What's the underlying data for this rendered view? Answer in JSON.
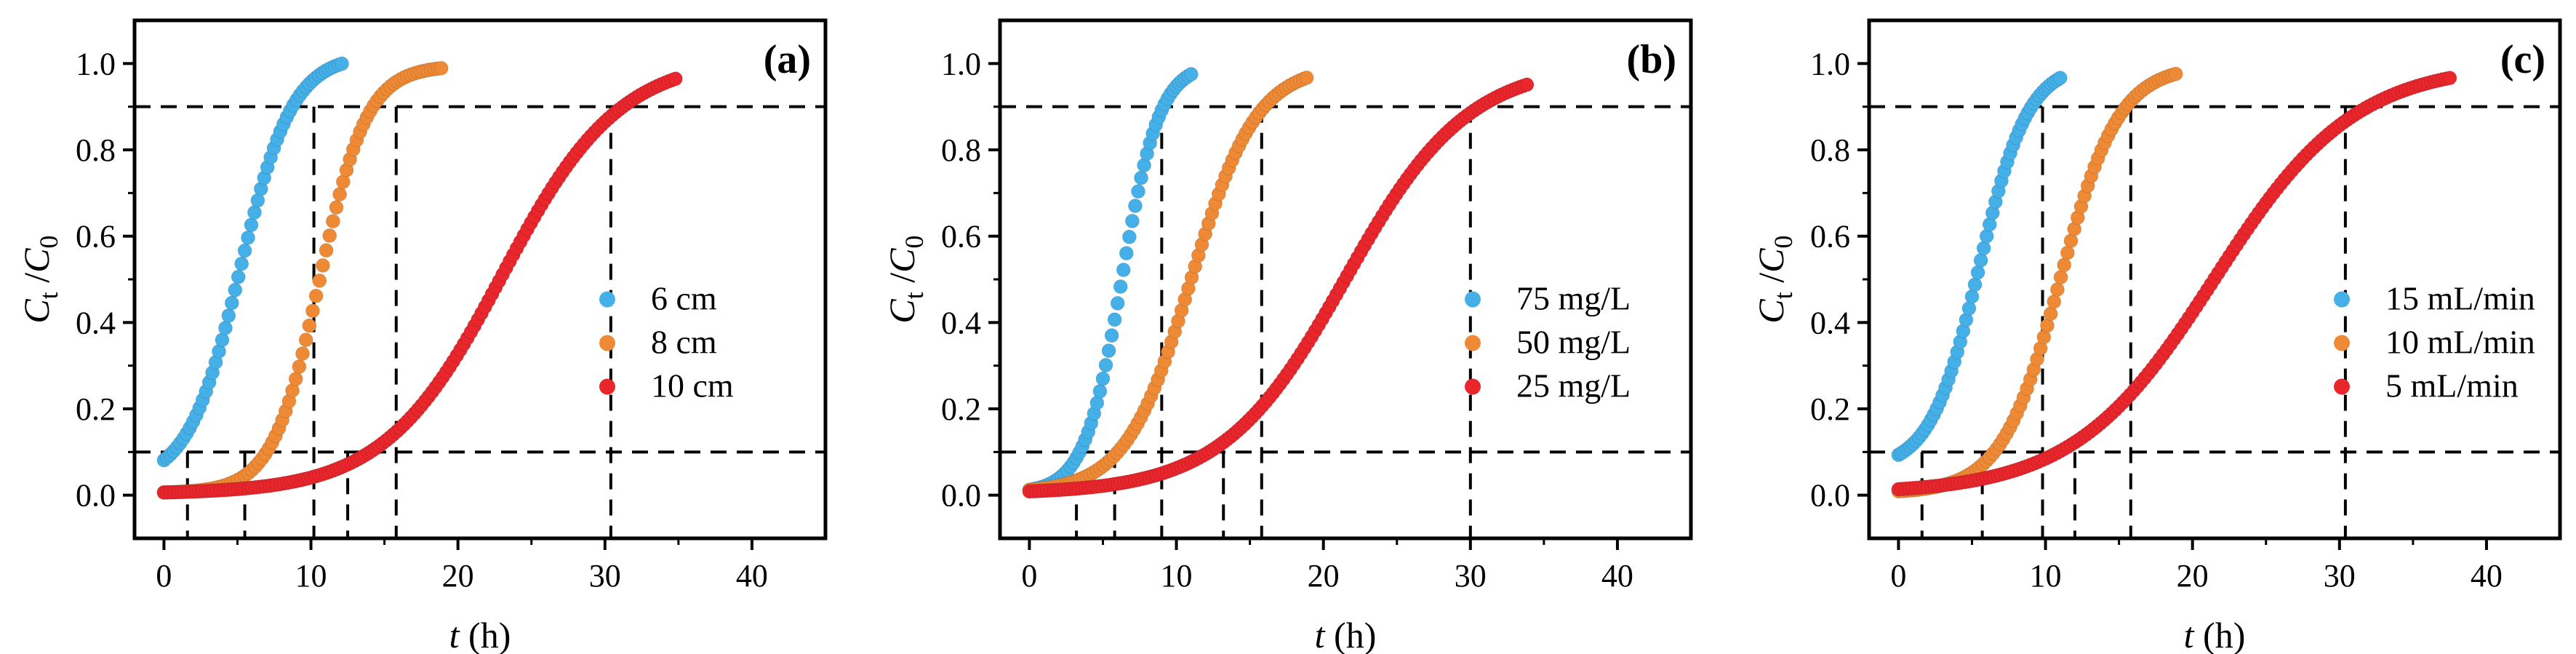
{
  "figure": {
    "series_colors": [
      "#45b0e8",
      "#ee8a35",
      "#e8262c"
    ],
    "ref_lines_y": [
      0.1,
      0.9
    ]
  },
  "chart_data": [
    {
      "type": "scatter",
      "panel_label": "(a)",
      "xlabel": {
        "var": "t",
        "unit": " (h)"
      },
      "ylabel": {
        "var": "C",
        "sub_t": "t",
        "slash": " /",
        "var2": "C",
        "sub_0": "0"
      },
      "xlim": [
        -2,
        45
      ],
      "ylim": [
        -0.1,
        1.1
      ],
      "xticks": [
        0,
        10,
        20,
        30,
        40
      ],
      "xtick_labels": [
        "0",
        "10",
        "20",
        "30",
        "40"
      ],
      "yticks": [
        0.0,
        0.2,
        0.4,
        0.6,
        0.8,
        1.0
      ],
      "ytick_labels": [
        "0.0",
        "0.2",
        "0.4",
        "0.6",
        "0.8",
        "1.0"
      ],
      "legend_position": "center-right",
      "series": [
        {
          "name": "6 cm",
          "color": "#45b0e8",
          "t_start": 0.0,
          "t_end": 12.3,
          "t_mid": 5.2,
          "k": 0.56,
          "c0": 0.03,
          "c_end": 1.02,
          "step": 0.22,
          "breakthrough_t": 1.6,
          "exhaustion_t": 10.2
        },
        {
          "name": "8 cm",
          "color": "#ee8a35",
          "t_start": 0.0,
          "t_end": 19.0,
          "t_mid": 10.6,
          "k": 0.62,
          "c0": 0.005,
          "c_end": 0.995,
          "step": 0.23,
          "breakthrough_t": 5.5,
          "exhaustion_t": 15.8
        },
        {
          "name": "10 cm",
          "color": "#e8262c",
          "t_start": 0.0,
          "t_end": 35.0,
          "t_mid": 23.0,
          "k": 0.25,
          "c0": 0.003,
          "c_end": 1.015,
          "step": 0.24,
          "breakthrough_t": 12.5,
          "exhaustion_t": 30.4
        }
      ]
    },
    {
      "type": "scatter",
      "panel_label": "(b)",
      "xlabel": {
        "var": "t",
        "unit": " (h)"
      },
      "ylabel": {
        "var": "C",
        "sub_t": "t",
        "slash": " /",
        "var2": "C",
        "sub_0": "0"
      },
      "xlim": [
        -2,
        45
      ],
      "ylim": [
        -0.1,
        1.1
      ],
      "xticks": [
        0,
        10,
        20,
        30,
        40
      ],
      "xtick_labels": [
        "0",
        "10",
        "20",
        "30",
        "40"
      ],
      "yticks": [
        0.0,
        0.2,
        0.4,
        0.6,
        0.8,
        1.0
      ],
      "ytick_labels": [
        "0.0",
        "0.2",
        "0.4",
        "0.6",
        "0.8",
        "1.0"
      ],
      "legend_position": "center-right",
      "series": [
        {
          "name": "75 mg/L",
          "color": "#45b0e8",
          "t_start": 0.0,
          "t_end": 11.0,
          "t_mid": 6.3,
          "k": 0.78,
          "c0": 0.005,
          "c_end": 1.0,
          "step": 0.2,
          "breakthrough_t": 3.2,
          "exhaustion_t": 9.0
        },
        {
          "name": "50 mg/L",
          "color": "#ee8a35",
          "t_start": 0.0,
          "t_end": 19.0,
          "t_mid": 11.0,
          "k": 0.45,
          "c0": 0.005,
          "c_end": 0.995,
          "step": 0.23,
          "breakthrough_t": 5.8,
          "exhaustion_t": 15.8
        },
        {
          "name": "25 mg/L",
          "color": "#e8262c",
          "t_start": 0.0,
          "t_end": 34.0,
          "t_mid": 21.5,
          "k": 0.24,
          "c0": 0.003,
          "c_end": 1.0,
          "step": 0.24,
          "breakthrough_t": 13.2,
          "exhaustion_t": 30.0
        }
      ]
    },
    {
      "type": "scatter",
      "panel_label": "(c)",
      "xlabel": {
        "var": "t",
        "unit": " (h)"
      },
      "ylabel": {
        "var": "C",
        "sub_t": "t",
        "slash": " /",
        "var2": "C",
        "sub_0": "0"
      },
      "xlim": [
        -2,
        45
      ],
      "ylim": [
        -0.1,
        1.1
      ],
      "xticks": [
        0,
        10,
        20,
        30,
        40
      ],
      "xtick_labels": [
        "0",
        "10",
        "20",
        "30",
        "40"
      ],
      "yticks": [
        0.0,
        0.2,
        0.4,
        0.6,
        0.8,
        1.0
      ],
      "ytick_labels": [
        "0.0",
        "0.2",
        "0.4",
        "0.6",
        "0.8",
        "1.0"
      ],
      "legend_position": "center-right",
      "series": [
        {
          "name": "15 mL/min",
          "color": "#45b0e8",
          "t_start": 0.0,
          "t_end": 11.0,
          "t_mid": 5.5,
          "k": 0.6,
          "c0": 0.06,
          "c_end": 1.0,
          "step": 0.2,
          "breakthrough_t": 1.6,
          "exhaustion_t": 9.8
        },
        {
          "name": "10 mL/min",
          "color": "#ee8a35",
          "t_start": 0.0,
          "t_end": 19.0,
          "t_mid": 11.0,
          "k": 0.5,
          "c0": 0.005,
          "c_end": 0.995,
          "step": 0.23,
          "breakthrough_t": 5.7,
          "exhaustion_t": 15.8
        },
        {
          "name": "5 mL/min",
          "color": "#e8262c",
          "t_start": 0.0,
          "t_end": 37.5,
          "t_mid": 21.5,
          "k": 0.21,
          "c0": 0.003,
          "c_end": 1.0,
          "step": 0.25,
          "breakthrough_t": 12.0,
          "exhaustion_t": 30.4
        }
      ]
    }
  ]
}
